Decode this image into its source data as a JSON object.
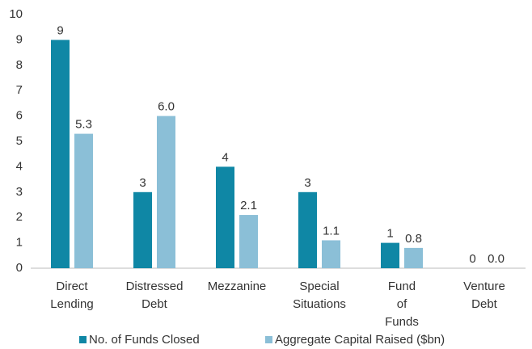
{
  "chart_data": {
    "type": "bar",
    "categories": [
      "Direct Lending",
      "Distressed Debt",
      "Mezzanine",
      "Special Situations",
      "Fund of Funds",
      "Venture Debt"
    ],
    "series": [
      {
        "name": "No. of Funds Closed",
        "color": "#0f87a5",
        "values": [
          9,
          3,
          4,
          3,
          1,
          0
        ]
      },
      {
        "name": "Aggregate Capital Raised ($bn)",
        "color": "#8bbfd7",
        "values": [
          5.3,
          6,
          2.1,
          1.1,
          0.8,
          0
        ],
        "value_labels": [
          "5.3",
          "6.0",
          "2.1",
          "1.1",
          "0.8",
          "0.0"
        ]
      }
    ],
    "ylim": [
      0,
      10
    ],
    "yticks": [
      0,
      1,
      2,
      3,
      4,
      5,
      6,
      7,
      8,
      9,
      10
    ],
    "grid": false,
    "legend": "bottom"
  }
}
